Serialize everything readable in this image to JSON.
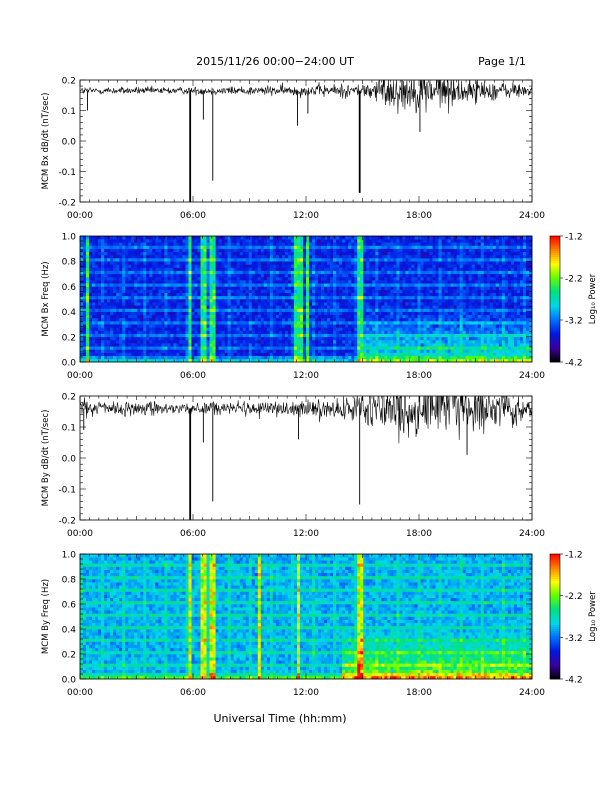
{
  "page": {
    "title": "2015/11/26  00:00−24:00 UT",
    "page_label": "Page 1/1",
    "xlabel": "Universal Time (hh:mm)"
  },
  "colorbar": {
    "label": "Log₁₀ Power",
    "ticks": [
      "-1.2",
      "-2.2",
      "-3.2",
      "-4.2"
    ],
    "range": [
      -4.2,
      -1.2
    ],
    "colormap": [
      "#000000",
      "#3a00a0",
      "#0018e0",
      "#0070ff",
      "#00d8e8",
      "#00e080",
      "#60ff00",
      "#ffff00",
      "#ff8000",
      "#ff0000"
    ]
  },
  "chart_data": [
    {
      "type": "line",
      "ylabel": "MCM Bx dB/dt (nT/sec)",
      "xlim": [
        0,
        24
      ],
      "ylim": [
        -0.2,
        0.2
      ],
      "yticks": [
        "0.2",
        "0.1",
        "0.0",
        "-0.1",
        "-0.2"
      ],
      "xticks": [
        "00:00",
        "06:00",
        "12:00",
        "18:00",
        "24:00"
      ],
      "baseline": 0.165,
      "noise_profile": [
        [
          0,
          0.012
        ],
        [
          6,
          0.012
        ],
        [
          11.5,
          0.018
        ],
        [
          15,
          0.025
        ],
        [
          16.5,
          0.06
        ],
        [
          18.5,
          0.07
        ],
        [
          21,
          0.04
        ],
        [
          24,
          0.02
        ]
      ],
      "spikes": [
        {
          "t": 0.4,
          "y": 0.1
        },
        {
          "t": 5.85,
          "y": -0.2
        },
        {
          "t": 6.55,
          "y": 0.07
        },
        {
          "t": 7.05,
          "y": -0.13
        },
        {
          "t": 11.55,
          "y": 0.05
        },
        {
          "t": 12.1,
          "y": 0.09
        },
        {
          "t": 14.85,
          "y": -0.17
        },
        {
          "t": 18.05,
          "y": 0.03
        }
      ]
    },
    {
      "type": "heatmap",
      "ylabel": "MCM Bx Freq (Hz)",
      "xlim": [
        0,
        24
      ],
      "ylim": [
        0.0,
        1.0
      ],
      "yticks": [
        "1.0",
        "0.8",
        "0.6",
        "0.4",
        "0.2",
        "0.0"
      ],
      "xticks": [
        "00:00",
        "06:00",
        "12:00",
        "18:00",
        "24:00"
      ],
      "zlim": [
        -4.2,
        -1.2
      ],
      "base_level": -3.5,
      "bright_columns": [
        0.4,
        5.85,
        6.55,
        7.05,
        11.5,
        11.65,
        12.1,
        14.85
      ],
      "low_freq_activity": [
        15,
        24
      ]
    },
    {
      "type": "line",
      "ylabel": "MCM By dB/dt (nT/sec)",
      "xlim": [
        0,
        24
      ],
      "ylim": [
        -0.2,
        0.2
      ],
      "yticks": [
        "0.2",
        "0.1",
        "0.0",
        "-0.1",
        "-0.2"
      ],
      "xticks": [
        "00:00",
        "06:00",
        "12:00",
        "18:00",
        "24:00"
      ],
      "baseline": 0.16,
      "noise_profile": [
        [
          0,
          0.025
        ],
        [
          6,
          0.02
        ],
        [
          11.5,
          0.025
        ],
        [
          15,
          0.04
        ],
        [
          16,
          0.08
        ],
        [
          19,
          0.09
        ],
        [
          22,
          0.06
        ],
        [
          24,
          0.035
        ]
      ],
      "spikes": [
        {
          "t": 0.2,
          "y": 0.09
        },
        {
          "t": 5.85,
          "y": -0.2
        },
        {
          "t": 6.55,
          "y": 0.05
        },
        {
          "t": 7.05,
          "y": -0.14
        },
        {
          "t": 11.6,
          "y": 0.06
        },
        {
          "t": 14.85,
          "y": -0.15
        },
        {
          "t": 20.55,
          "y": 0.01
        }
      ]
    },
    {
      "type": "heatmap",
      "ylabel": "MCM By Freq (Hz)",
      "xlim": [
        0,
        24
      ],
      "ylim": [
        0.0,
        1.0
      ],
      "yticks": [
        "1.0",
        "0.8",
        "0.6",
        "0.4",
        "0.2",
        "0.0"
      ],
      "xticks": [
        "00:00",
        "06:00",
        "12:00",
        "18:00",
        "24:00"
      ],
      "zlim": [
        -4.2,
        -1.2
      ],
      "base_level": -3.0,
      "bright_columns": [
        5.85,
        6.55,
        7.05,
        9.5,
        11.6,
        14.85
      ],
      "low_freq_activity": [
        14,
        24
      ]
    }
  ]
}
